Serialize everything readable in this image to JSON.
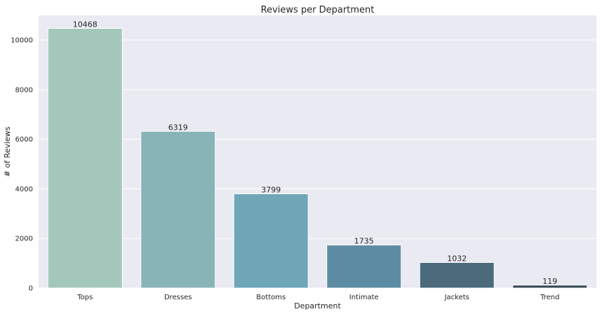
{
  "chart_data": {
    "type": "bar",
    "title": "Reviews per Department",
    "xlabel": "Department",
    "ylabel": "# of Reviews",
    "categories": [
      "Tops",
      "Dresses",
      "Bottoms",
      "Intimate",
      "Jackets",
      "Trend"
    ],
    "values": [
      10468,
      6319,
      3799,
      1735,
      1032,
      119
    ],
    "data_labels": [
      "10468",
      "6319",
      "3799",
      "1735",
      "1032",
      "119"
    ],
    "yticks": [
      0,
      2000,
      4000,
      6000,
      8000,
      10000
    ],
    "ytick_labels": [
      "0",
      "2000",
      "4000",
      "6000",
      "8000",
      "10000"
    ],
    "ylim": [
      0,
      10990
    ],
    "grid": true,
    "colors": [
      "#a3c7bb",
      "#88b4b8",
      "#6fa6b8",
      "#5c8ca3",
      "#4b6b7d",
      "#3a4a55"
    ],
    "background": "#eaeaf2"
  }
}
